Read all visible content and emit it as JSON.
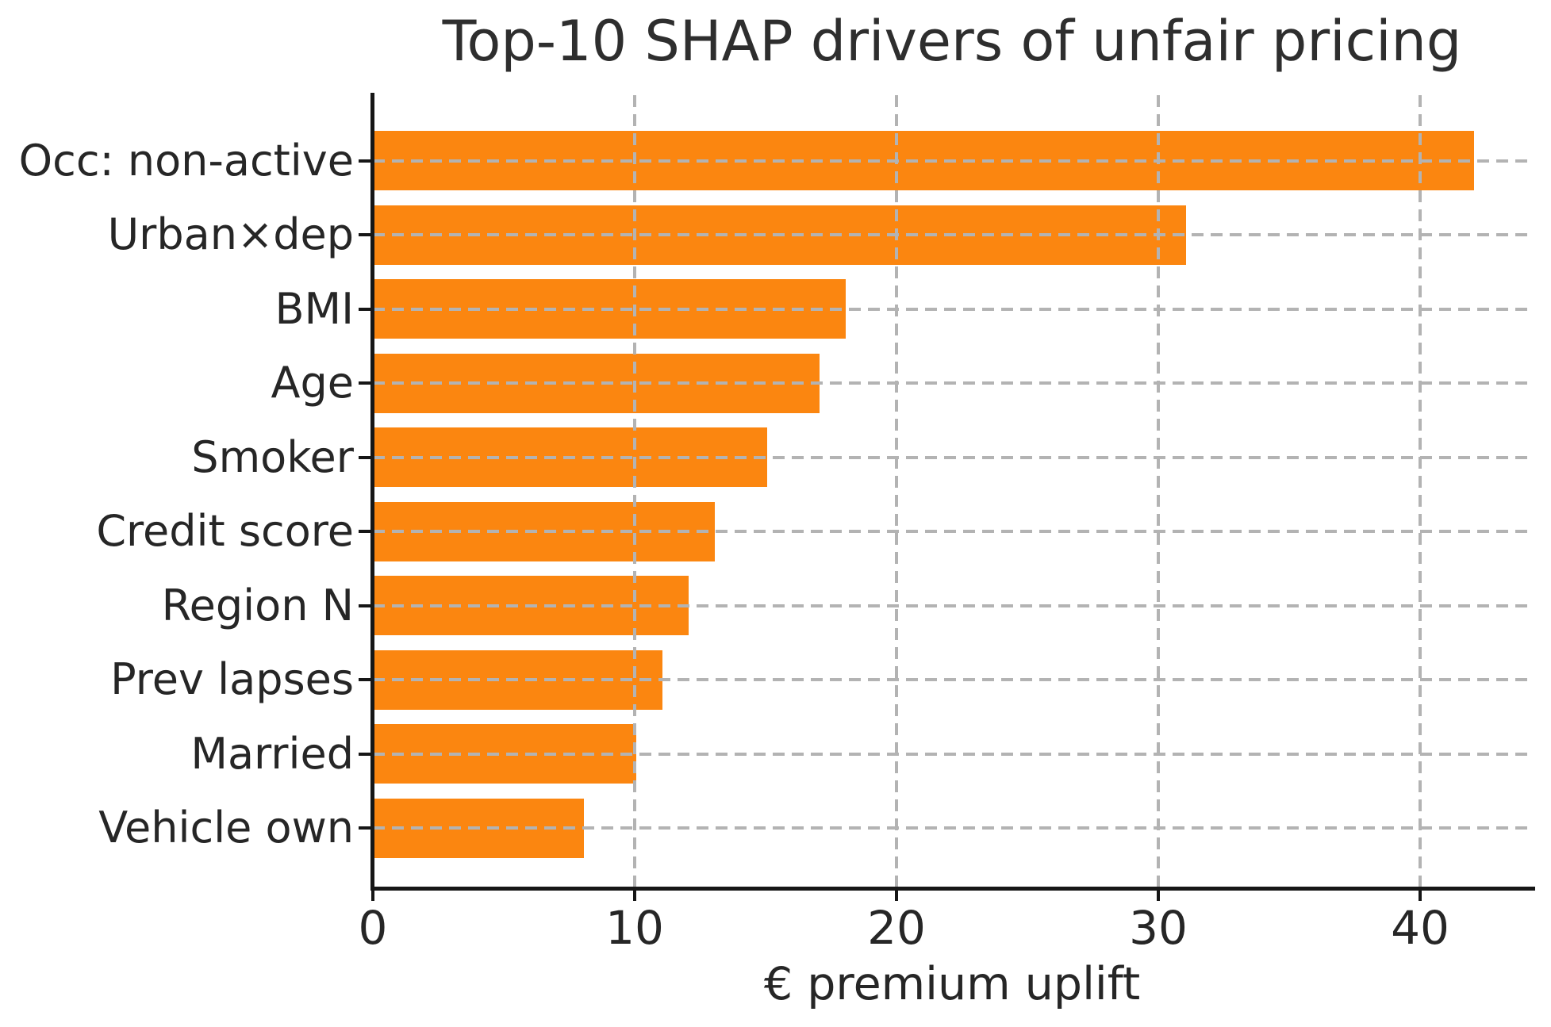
{
  "chart_data": {
    "type": "bar",
    "orientation": "horizontal",
    "title": "Top-10 SHAP drivers of unfair pricing",
    "xlabel": "€ premium uplift",
    "ylabel": "",
    "categories": [
      "Occ: non-active",
      "Urban×dep",
      "BMI",
      "Age",
      "Smoker",
      "Credit score",
      "Region N",
      "Prev lapses",
      "Married",
      "Vehicle own"
    ],
    "values": [
      42,
      31,
      18,
      17,
      15,
      13,
      12,
      11,
      10,
      8
    ],
    "x_ticks": [
      0,
      10,
      20,
      30,
      40
    ],
    "xlim": [
      0,
      44.24
    ],
    "grid": "dashed, both axes, drawn over bars",
    "legend": "none",
    "bar_color": "#fb8610",
    "grid_color": "#b3b3b3",
    "spine_color": "#161616",
    "text_color": "#262626"
  }
}
